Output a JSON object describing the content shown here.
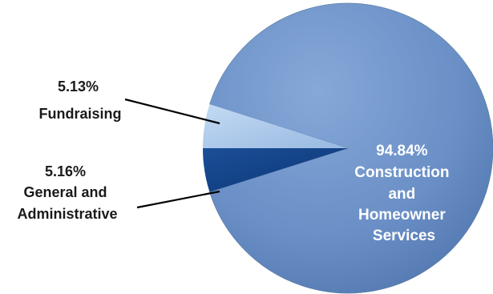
{
  "chart_data": {
    "type": "pie",
    "slices": [
      {
        "label": "Construction and Homeowner Services",
        "value": 94.84,
        "value_label": "94.84%",
        "label_lines": [
          "94.84%",
          "Construction",
          "and",
          "Homeowner",
          "Services"
        ],
        "color": "#6a8fc6"
      },
      {
        "label": "General and Administrative",
        "value": 5.16,
        "value_label": "5.16%",
        "label_lines": [
          "5.16%",
          "General and",
          "Administrative"
        ],
        "color": "#a8c6ea"
      },
      {
        "label": "Fundraising",
        "value": 5.13,
        "value_label": "5.13%",
        "label_lines": [
          "5.13%",
          "Fundraising"
        ],
        "color": "#0f3f86"
      }
    ],
    "legend": "none",
    "labels": "outside with leader lines; largest slice labeled inside"
  }
}
